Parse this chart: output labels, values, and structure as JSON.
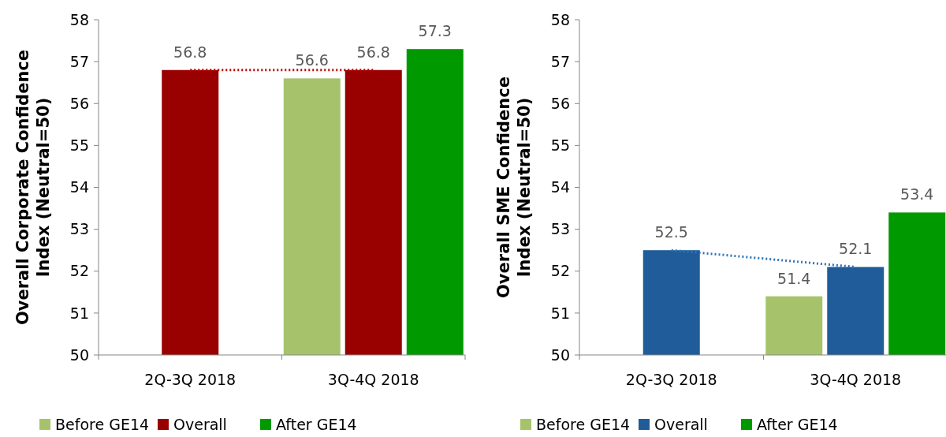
{
  "chart_data": [
    {
      "type": "bar",
      "ylabel": "Overall Corporate Confidence Index (Neutral=50)",
      "categories": [
        "2Q-3Q 2018",
        "3Q-4Q 2018"
      ],
      "series": [
        {
          "name": "Before GE14",
          "color": "#a6c36b",
          "values": [
            null,
            56.6
          ],
          "value_labels": [
            null,
            "56.6"
          ]
        },
        {
          "name": "Overall",
          "color": "#990000",
          "values": [
            56.8,
            56.8
          ],
          "value_labels": [
            "56.8",
            "56.8"
          ]
        },
        {
          "name": "After GE14",
          "color": "#009900",
          "values": [
            null,
            57.3
          ],
          "value_labels": [
            null,
            "57.3"
          ]
        },
        {
          "type": "line",
          "color": "#c00000",
          "line_style": "dotted",
          "values": [
            56.8,
            56.8
          ]
        }
      ],
      "ylim": [
        50,
        58
      ],
      "yticks": [
        50,
        51,
        52,
        53,
        54,
        55,
        56,
        57,
        58
      ],
      "legend": "bottom",
      "grid": false
    },
    {
      "type": "bar",
      "ylabel": "Overall SME Confidence Index (Neutral=50)",
      "categories": [
        "2Q-3Q 2018",
        "3Q-4Q 2018"
      ],
      "series": [
        {
          "name": "Before GE14",
          "color": "#a6c36b",
          "values": [
            null,
            51.4
          ],
          "value_labels": [
            null,
            "51.4"
          ]
        },
        {
          "name": "Overall",
          "color": "#1f5c99",
          "values": [
            52.5,
            52.1
          ],
          "value_labels": [
            "52.5",
            "52.1"
          ]
        },
        {
          "name": "After GE14",
          "color": "#009900",
          "values": [
            null,
            53.4
          ],
          "value_labels": [
            null,
            "53.4"
          ]
        },
        {
          "type": "line",
          "color": "#2e75b6",
          "line_style": "dotted",
          "values": [
            52.5,
            52.1
          ]
        }
      ],
      "ylim": [
        50,
        58
      ],
      "yticks": [
        50,
        51,
        52,
        53,
        54,
        55,
        56,
        57,
        58
      ],
      "legend": "bottom",
      "grid": false
    }
  ]
}
